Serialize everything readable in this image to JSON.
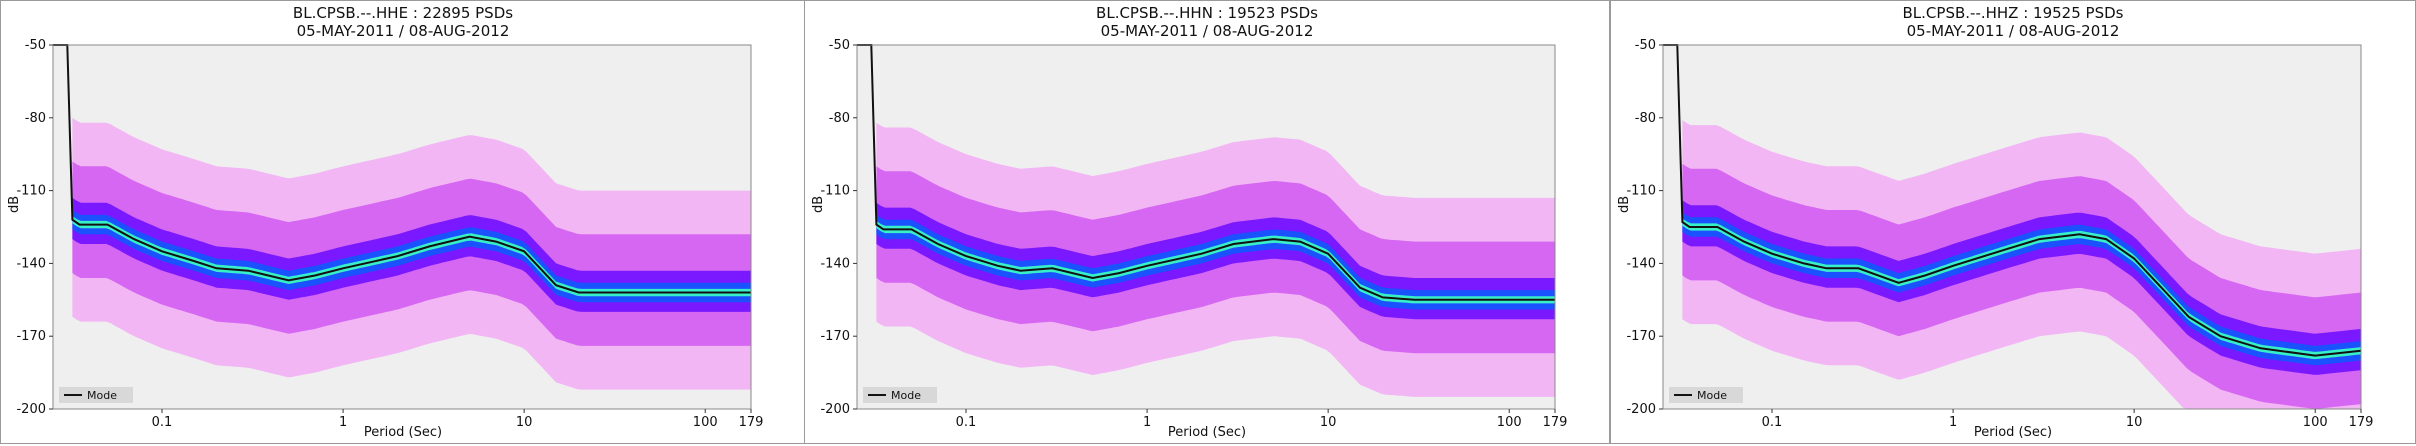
{
  "colors": {
    "plot_bg": "#efefef",
    "pdf_low": "#f2b6f5",
    "pdf_mid": "#d667f2",
    "pdf_high": "#7a18ff",
    "pdf_peak": "#1a52ff",
    "pdf_top": "#38f0c8",
    "mode_line": "#111111",
    "nhnm_line": "#666666",
    "nlnm_line": "#777777"
  },
  "chart_data": [
    {
      "type": "line",
      "title": "BL.CPSB.--.HHE : 22895 PSDs",
      "subtitle": "05-MAY-2011 / 08-AUG-2012",
      "xlabel": "Period (Sec)",
      "ylabel": "dB",
      "x_scale": "log",
      "xlim": [
        0.025,
        179
      ],
      "ylim": [
        -200,
        -50
      ],
      "x_ticks": [
        "0.1",
        "1",
        "10",
        "100",
        "179"
      ],
      "y_ticks": [
        "-50",
        "-80",
        "-110",
        "-140",
        "-170",
        "-200"
      ],
      "legend": {
        "placement": "bottom-left",
        "entries": [
          "Mode"
        ]
      },
      "series": [
        {
          "name": "Mode",
          "x": [
            0.025,
            0.03,
            0.032,
            0.035,
            0.05,
            0.07,
            0.1,
            0.15,
            0.2,
            0.3,
            0.5,
            0.7,
            1,
            2,
            3,
            5,
            7,
            10,
            15,
            20,
            30,
            50,
            100,
            179
          ],
          "y": [
            -50,
            -50,
            -122,
            -124,
            -124,
            -130,
            -135,
            -139,
            -142,
            -143,
            -147,
            -145,
            -142,
            -137,
            -133,
            -129,
            -131,
            -135,
            -149,
            -152,
            -152,
            -152,
            -152,
            -152
          ]
        }
      ]
    },
    {
      "type": "line",
      "title": "BL.CPSB.--.HHN : 19523 PSDs",
      "subtitle": "05-MAY-2011 / 08-AUG-2012",
      "xlabel": "Period (Sec)",
      "ylabel": "dB",
      "x_scale": "log",
      "xlim": [
        0.025,
        179
      ],
      "ylim": [
        -200,
        -50
      ],
      "x_ticks": [
        "0.1",
        "1",
        "10",
        "100",
        "179"
      ],
      "y_ticks": [
        "-50",
        "-80",
        "-110",
        "-140",
        "-170",
        "-200"
      ],
      "legend": {
        "placement": "bottom-left",
        "entries": [
          "Mode"
        ]
      },
      "series": [
        {
          "name": "Mode",
          "x": [
            0.025,
            0.03,
            0.032,
            0.035,
            0.05,
            0.07,
            0.1,
            0.15,
            0.2,
            0.3,
            0.5,
            0.7,
            1,
            2,
            3,
            5,
            7,
            10,
            15,
            20,
            30,
            50,
            100,
            179
          ],
          "y": [
            -50,
            -50,
            -124,
            -126,
            -126,
            -132,
            -137,
            -141,
            -143,
            -142,
            -146,
            -144,
            -141,
            -136,
            -132,
            -130,
            -131,
            -136,
            -150,
            -154,
            -155,
            -155,
            -155,
            -155
          ]
        }
      ]
    },
    {
      "type": "line",
      "title": "BL.CPSB.--.HHZ : 19525 PSDs",
      "subtitle": "05-MAY-2011 / 08-AUG-2012",
      "xlabel": "Period (Sec)",
      "ylabel": "dB",
      "x_scale": "log",
      "xlim": [
        0.025,
        179
      ],
      "ylim": [
        -200,
        -50
      ],
      "x_ticks": [
        "0.1",
        "1",
        "10",
        "100",
        "179"
      ],
      "y_ticks": [
        "-50",
        "-80",
        "-110",
        "-140",
        "-170",
        "-200"
      ],
      "legend": {
        "placement": "bottom-left",
        "entries": [
          "Mode"
        ]
      },
      "series": [
        {
          "name": "Mode",
          "x": [
            0.025,
            0.03,
            0.032,
            0.035,
            0.05,
            0.07,
            0.1,
            0.15,
            0.2,
            0.3,
            0.5,
            0.7,
            1,
            2,
            3,
            5,
            7,
            10,
            15,
            20,
            30,
            50,
            100,
            179
          ],
          "y": [
            -50,
            -50,
            -123,
            -125,
            -125,
            -131,
            -136,
            -140,
            -142,
            -142,
            -148,
            -145,
            -141,
            -134,
            -130,
            -128,
            -130,
            -138,
            -152,
            -162,
            -170,
            -175,
            -178,
            -176
          ]
        }
      ]
    }
  ]
}
